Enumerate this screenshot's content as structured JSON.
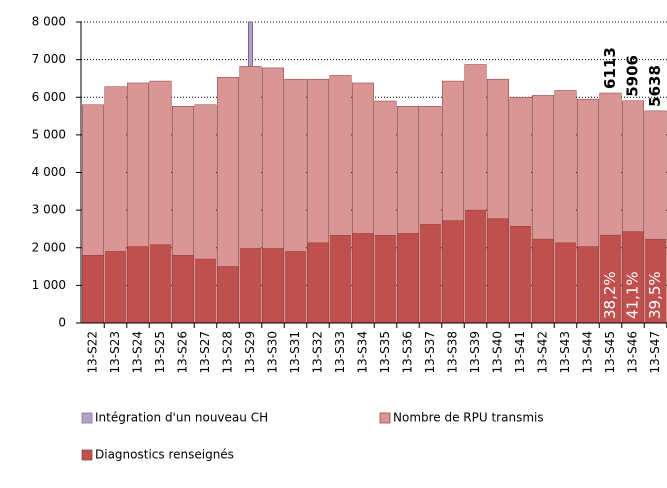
{
  "chart_data": {
    "type": "bar",
    "categories": [
      "13-S22",
      "13-S23",
      "13-S24",
      "13-S25",
      "13-S26",
      "13-S27",
      "13-S28",
      "13-S29",
      "13-S30",
      "13-S31",
      "13-S32",
      "13-S33",
      "13-S34",
      "13-S35",
      "13-S36",
      "13-S37",
      "13-S38",
      "13-S39",
      "13-S40",
      "13-S41",
      "13-S42",
      "13-S43",
      "13-S44",
      "13-S45",
      "13-S46",
      "13-S47"
    ],
    "series": [
      {
        "name": "Intégration d'un nouveau CH",
        "color": "#b3a2c7",
        "values": [
          null,
          null,
          null,
          null,
          null,
          null,
          null,
          8000,
          null,
          null,
          null,
          null,
          null,
          null,
          null,
          null,
          null,
          null,
          null,
          null,
          null,
          null,
          null,
          null,
          null,
          null
        ]
      },
      {
        "name": "Nombre de RPU transmis",
        "color": "#d99694",
        "values": [
          5800,
          6280,
          6380,
          6430,
          5760,
          5800,
          6530,
          6820,
          6780,
          6480,
          6480,
          6580,
          6380,
          5900,
          5760,
          5760,
          6430,
          6870,
          6480,
          6000,
          6050,
          6180,
          5950,
          6113,
          5906,
          5638
        ],
        "value_labels": [
          null,
          null,
          null,
          null,
          null,
          null,
          null,
          null,
          null,
          null,
          null,
          null,
          null,
          null,
          null,
          null,
          null,
          null,
          null,
          null,
          null,
          null,
          null,
          "6113",
          "5906",
          "5638"
        ]
      },
      {
        "name": "Diagnostics renseignés",
        "color": "#c0504d",
        "values": [
          1800,
          1900,
          2030,
          2080,
          1800,
          1700,
          1500,
          1980,
          1980,
          1900,
          2130,
          2330,
          2380,
          2330,
          2380,
          2620,
          2720,
          3000,
          2770,
          2570,
          2230,
          2130,
          2030,
          2335,
          2427,
          2227
        ]
      }
    ],
    "annotations": [
      {
        "category": "13-S45",
        "value": 38.2,
        "label": "38,2%"
      },
      {
        "category": "13-S46",
        "value": 41.1,
        "label": "41,1%"
      },
      {
        "category": "13-S47",
        "value": 39.5,
        "label": "39,5%"
      }
    ],
    "ylim": [
      0,
      8000
    ],
    "yticks": [
      0,
      {
        "value": 1000,
        "label": "1 000"
      },
      {
        "value": 2000,
        "label": "2 000"
      },
      {
        "value": 3000,
        "label": "3 000"
      },
      {
        "value": 4000,
        "label": "4 000"
      },
      {
        "value": 5000,
        "label": "5 000"
      },
      {
        "value": 6000,
        "label": "6 000"
      },
      {
        "value": 7000,
        "label": "7 000"
      },
      {
        "value": 8000,
        "label": "8 000"
      }
    ],
    "grid": true
  }
}
